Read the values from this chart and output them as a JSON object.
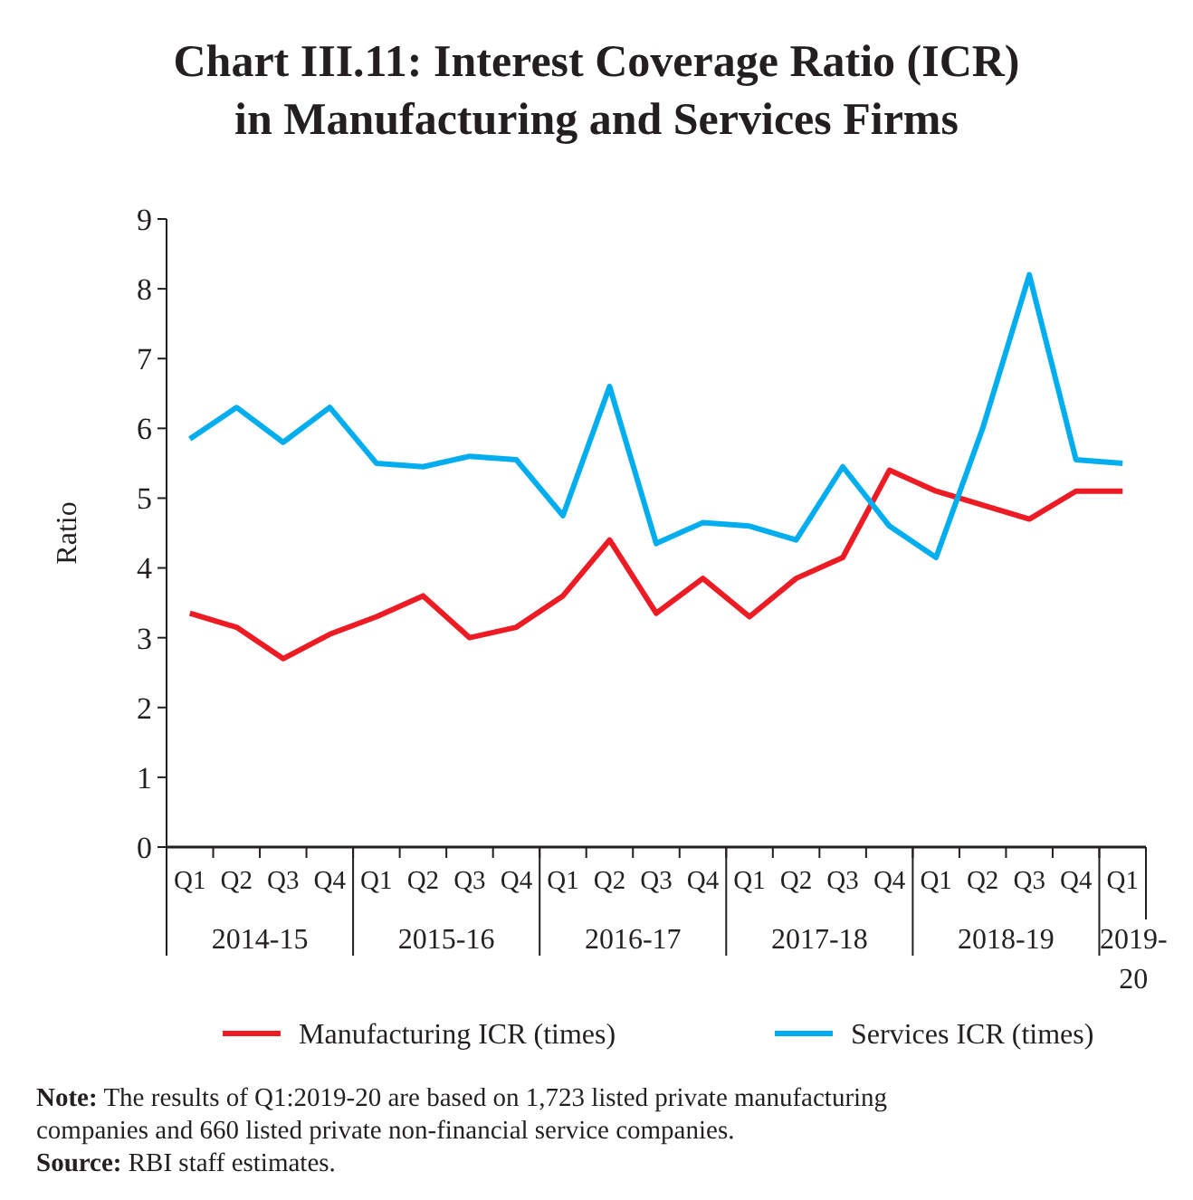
{
  "chart_data": {
    "type": "line",
    "title": "Chart III.11: Interest Coverage Ratio (ICR) in Manufacturing and Services Firms",
    "ylabel": "Ratio",
    "categories": [
      "Q1",
      "Q2",
      "Q3",
      "Q4",
      "Q1",
      "Q2",
      "Q3",
      "Q4",
      "Q1",
      "Q2",
      "Q3",
      "Q4",
      "Q1",
      "Q2",
      "Q3",
      "Q4",
      "Q1",
      "Q2",
      "Q3",
      "Q4",
      "Q1"
    ],
    "series": [
      {
        "name": "Manufacturing ICR (times)",
        "color": "#ed1c24",
        "values": [
          3.35,
          3.15,
          2.7,
          3.05,
          3.3,
          3.6,
          3.0,
          3.15,
          3.6,
          4.4,
          3.35,
          3.85,
          3.3,
          3.85,
          4.15,
          5.4,
          5.1,
          4.9,
          4.7,
          5.1,
          5.1
        ]
      },
      {
        "name": "Services ICR (times)",
        "color": "#00aeef",
        "values": [
          5.85,
          6.3,
          5.8,
          6.3,
          5.5,
          5.45,
          5.6,
          5.55,
          4.75,
          6.6,
          4.35,
          4.65,
          4.6,
          4.4,
          5.45,
          4.6,
          4.15,
          6.0,
          8.2,
          5.55,
          5.5
        ]
      }
    ],
    "ylim": [
      0,
      9
    ],
    "yticks": [
      0,
      1,
      2,
      3,
      4,
      5,
      6,
      7,
      8,
      9
    ],
    "grid": false,
    "legend": "bottom",
    "line_style": "solid",
    "annotations": [
      "2014-15",
      "2015-16",
      "2016-17",
      "2017-18",
      "2018-19",
      "2019-20",
      "Note: The results of Q1:2019-20 are based on 1,723 listed private manufacturing companies and 660 listed private non-financial service companies.",
      "Source: RBI staff estimates."
    ]
  }
}
